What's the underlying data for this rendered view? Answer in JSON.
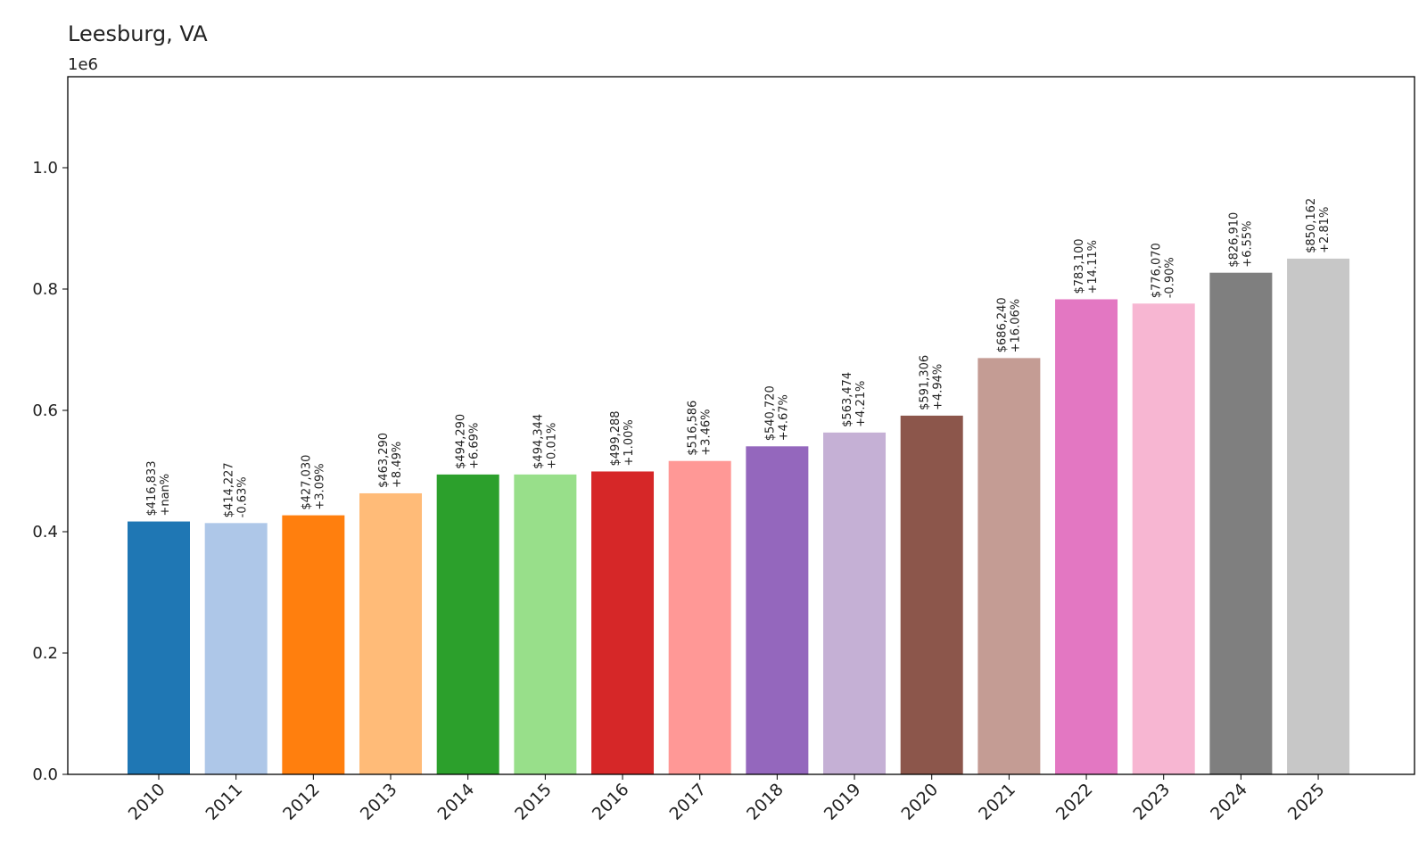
{
  "chart_data": {
    "type": "bar",
    "title": "Leesburg, VA",
    "xlabel": "",
    "ylabel": "",
    "y_scale_label": "1e6",
    "ylim": [
      0,
      1.15
    ],
    "yticks": [
      0.0,
      0.2,
      0.4,
      0.6,
      0.8,
      1.0
    ],
    "ytick_labels": [
      "0.0",
      "0.2",
      "0.4",
      "0.6",
      "0.8",
      "1.0"
    ],
    "grid": false,
    "legend": "none",
    "categories": [
      "2010",
      "2011",
      "2012",
      "2013",
      "2014",
      "2015",
      "2016",
      "2017",
      "2018",
      "2019",
      "2020",
      "2021",
      "2022",
      "2023",
      "2024",
      "2025"
    ],
    "values": [
      416833,
      414227,
      427030,
      463290,
      494290,
      494344,
      499288,
      516586,
      540720,
      563474,
      591306,
      686240,
      783100,
      776070,
      826910,
      850162
    ],
    "value_labels": [
      "$416,833",
      "$414,227",
      "$427,030",
      "$463,290",
      "$494,290",
      "$494,344",
      "$499,288",
      "$516,586",
      "$540,720",
      "$563,474",
      "$591,306",
      "$686,240",
      "$783,100",
      "$776,070",
      "$826,910",
      "$850,162"
    ],
    "change_labels": [
      "+nan%",
      "-0.63%",
      "+3.09%",
      "+8.49%",
      "+6.69%",
      "+0.01%",
      "+1.00%",
      "+3.46%",
      "+4.67%",
      "+4.21%",
      "+4.94%",
      "+16.06%",
      "+14.11%",
      "-0.90%",
      "+6.55%",
      "+2.81%"
    ],
    "colors": [
      "#1f77b4",
      "#aec7e8",
      "#ff7f0e",
      "#ffbb78",
      "#2ca02c",
      "#98df8a",
      "#d62728",
      "#ff9896",
      "#9467bd",
      "#c5b0d5",
      "#8c564b",
      "#c49c94",
      "#e377c2",
      "#f7b6d2",
      "#7f7f7f",
      "#c7c7c7"
    ]
  }
}
